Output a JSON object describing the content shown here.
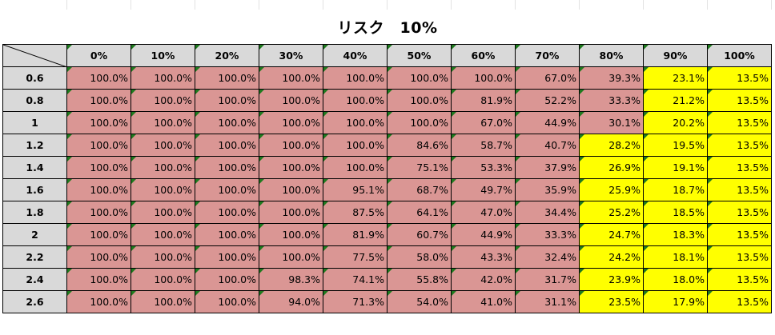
{
  "title": "リスク　10%",
  "columns": [
    "0%",
    "10%",
    "20%",
    "30%",
    "40%",
    "50%",
    "60%",
    "70%",
    "80%",
    "90%",
    "100%"
  ],
  "rows": [
    {
      "label": "0.6",
      "values": [
        "100.0%",
        "100.0%",
        "100.0%",
        "100.0%",
        "100.0%",
        "100.0%",
        "100.0%",
        "67.0%",
        "39.3%",
        "23.1%",
        "13.5%"
      ],
      "red": 9
    },
    {
      "label": "0.8",
      "values": [
        "100.0%",
        "100.0%",
        "100.0%",
        "100.0%",
        "100.0%",
        "100.0%",
        "81.9%",
        "52.2%",
        "33.3%",
        "21.2%",
        "13.5%"
      ],
      "red": 9
    },
    {
      "label": "1",
      "values": [
        "100.0%",
        "100.0%",
        "100.0%",
        "100.0%",
        "100.0%",
        "100.0%",
        "67.0%",
        "44.9%",
        "30.1%",
        "20.2%",
        "13.5%"
      ],
      "red": 9
    },
    {
      "label": "1.2",
      "values": [
        "100.0%",
        "100.0%",
        "100.0%",
        "100.0%",
        "100.0%",
        "84.6%",
        "58.7%",
        "40.7%",
        "28.2%",
        "19.5%",
        "13.5%"
      ],
      "red": 8
    },
    {
      "label": "1.4",
      "values": [
        "100.0%",
        "100.0%",
        "100.0%",
        "100.0%",
        "100.0%",
        "75.1%",
        "53.3%",
        "37.9%",
        "26.9%",
        "19.1%",
        "13.5%"
      ],
      "red": 8
    },
    {
      "label": "1.6",
      "values": [
        "100.0%",
        "100.0%",
        "100.0%",
        "100.0%",
        "95.1%",
        "68.7%",
        "49.7%",
        "35.9%",
        "25.9%",
        "18.7%",
        "13.5%"
      ],
      "red": 8
    },
    {
      "label": "1.8",
      "values": [
        "100.0%",
        "100.0%",
        "100.0%",
        "100.0%",
        "87.5%",
        "64.1%",
        "47.0%",
        "34.4%",
        "25.2%",
        "18.5%",
        "13.5%"
      ],
      "red": 8
    },
    {
      "label": "2",
      "values": [
        "100.0%",
        "100.0%",
        "100.0%",
        "100.0%",
        "81.9%",
        "60.7%",
        "44.9%",
        "33.3%",
        "24.7%",
        "18.3%",
        "13.5%"
      ],
      "red": 8
    },
    {
      "label": "2.2",
      "values": [
        "100.0%",
        "100.0%",
        "100.0%",
        "100.0%",
        "77.5%",
        "58.0%",
        "43.3%",
        "32.4%",
        "24.2%",
        "18.1%",
        "13.5%"
      ],
      "red": 8
    },
    {
      "label": "2.4",
      "values": [
        "100.0%",
        "100.0%",
        "100.0%",
        "98.3%",
        "74.1%",
        "55.8%",
        "42.0%",
        "31.7%",
        "23.9%",
        "18.0%",
        "13.5%"
      ],
      "red": 8
    },
    {
      "label": "2.6",
      "values": [
        "100.0%",
        "100.0%",
        "100.0%",
        "94.0%",
        "71.3%",
        "54.0%",
        "41.0%",
        "31.1%",
        "23.5%",
        "17.9%",
        "13.5%"
      ],
      "red": 8
    }
  ],
  "colors": {
    "red": "#da9694",
    "yellow": "#ffff00",
    "header": "#d9d9d9"
  }
}
